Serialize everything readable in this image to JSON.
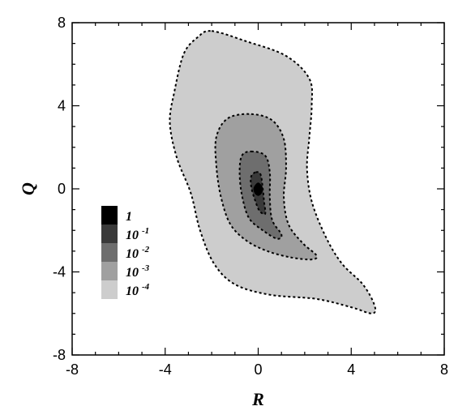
{
  "chart_data": {
    "type": "contour",
    "xlabel": "R",
    "ylabel": "Q",
    "xlim": [
      -8,
      8
    ],
    "ylim": [
      -8,
      8
    ],
    "xticks": [
      -8,
      -4,
      0,
      4,
      8
    ],
    "yticks": [
      -8,
      -4,
      0,
      4,
      8
    ],
    "grid": false,
    "legend_position": "left",
    "levels": [
      {
        "label": "1",
        "base": "1",
        "exp": "",
        "color": "#000000"
      },
      {
        "label": "10 -1",
        "base": "10",
        "exp": "-1",
        "color": "#3a3a3a"
      },
      {
        "label": "10 -2",
        "base": "10",
        "exp": "-2",
        "color": "#6e6e6e"
      },
      {
        "label": "10 -3",
        "base": "10",
        "exp": "-3",
        "color": "#a0a0a0"
      },
      {
        "label": "10 -4",
        "base": "10",
        "exp": "-4",
        "color": "#cdcdcd"
      }
    ],
    "contours": [
      {
        "level": "10 -4",
        "color": "#cdcdcd",
        "points": [
          [
            -2,
            7.6
          ],
          [
            -0.5,
            7.1
          ],
          [
            1.2,
            6.4
          ],
          [
            2.2,
            5.3
          ],
          [
            2.3,
            4.0
          ],
          [
            2.2,
            2.5
          ],
          [
            2.1,
            1.0
          ],
          [
            2.3,
            -0.6
          ],
          [
            2.9,
            -2.3
          ],
          [
            3.6,
            -3.6
          ],
          [
            4.5,
            -4.6
          ],
          [
            5.0,
            -5.6
          ],
          [
            4.9,
            -6.0
          ],
          [
            4.0,
            -5.7
          ],
          [
            2.5,
            -5.3
          ],
          [
            0.5,
            -5.1
          ],
          [
            -1.0,
            -4.6
          ],
          [
            -1.9,
            -3.6
          ],
          [
            -2.5,
            -2.0
          ],
          [
            -2.9,
            -0.2
          ],
          [
            -3.5,
            1.5
          ],
          [
            -3.8,
            3.2
          ],
          [
            -3.6,
            4.7
          ],
          [
            -3.2,
            6.5
          ],
          [
            -2.6,
            7.3
          ]
        ]
      },
      {
        "level": "10 -3",
        "color": "#a0a0a0",
        "points": [
          [
            -0.3,
            3.6
          ],
          [
            0.6,
            3.3
          ],
          [
            1.1,
            2.4
          ],
          [
            1.2,
            1.0
          ],
          [
            1.1,
            -0.4
          ],
          [
            1.3,
            -1.7
          ],
          [
            1.9,
            -2.6
          ],
          [
            2.5,
            -3.2
          ],
          [
            2.3,
            -3.4
          ],
          [
            1.4,
            -3.3
          ],
          [
            0.4,
            -3.0
          ],
          [
            -0.5,
            -2.5
          ],
          [
            -1.2,
            -1.7
          ],
          [
            -1.6,
            -0.4
          ],
          [
            -1.8,
            1.1
          ],
          [
            -1.8,
            2.5
          ],
          [
            -1.3,
            3.4
          ]
        ]
      },
      {
        "level": "10 -2",
        "color": "#6e6e6e",
        "points": [
          [
            -0.3,
            1.8
          ],
          [
            0.3,
            1.6
          ],
          [
            0.5,
            0.8
          ],
          [
            0.5,
            -0.4
          ],
          [
            0.6,
            -1.5
          ],
          [
            1.0,
            -2.2
          ],
          [
            0.8,
            -2.4
          ],
          [
            0.2,
            -2.0
          ],
          [
            -0.4,
            -1.4
          ],
          [
            -0.7,
            -0.3
          ],
          [
            -0.8,
            0.8
          ],
          [
            -0.7,
            1.6
          ]
        ]
      },
      {
        "level": "10 -1",
        "color": "#3a3a3a",
        "points": [
          [
            -0.1,
            0.8
          ],
          [
            0.1,
            0.7
          ],
          [
            0.2,
            0.0
          ],
          [
            0.25,
            -0.6
          ],
          [
            0.3,
            -1.2
          ],
          [
            0.05,
            -1.05
          ],
          [
            -0.15,
            -0.5
          ],
          [
            -0.3,
            0.1
          ],
          [
            -0.3,
            0.6
          ]
        ]
      },
      {
        "level": "1",
        "color": "#000000",
        "points": [
          [
            0,
            0.28
          ],
          [
            0.18,
            0.05
          ],
          [
            0.14,
            -0.2
          ],
          [
            0,
            -0.32
          ],
          [
            -0.14,
            -0.2
          ],
          [
            -0.18,
            0.05
          ]
        ]
      }
    ]
  }
}
